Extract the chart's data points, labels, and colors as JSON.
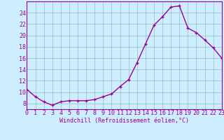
{
  "x": [
    0,
    1,
    2,
    3,
    4,
    5,
    6,
    7,
    8,
    9,
    10,
    11,
    12,
    13,
    14,
    15,
    16,
    17,
    18,
    19,
    20,
    21,
    22,
    23
  ],
  "y": [
    10.5,
    9.2,
    8.3,
    7.7,
    8.3,
    8.5,
    8.5,
    8.5,
    8.7,
    9.2,
    9.7,
    11.0,
    12.2,
    15.2,
    18.5,
    21.8,
    23.3,
    25.0,
    25.2,
    21.3,
    20.5,
    19.2,
    17.8,
    16.0
  ],
  "line_color": "#990099",
  "marker": "+",
  "bg_color": "#cceeff",
  "grid_color": "#99bbcc",
  "xlabel": "Windchill (Refroidissement éolien,°C)",
  "xlim": [
    0,
    23
  ],
  "ylim": [
    7,
    26
  ],
  "yticks": [
    8,
    10,
    12,
    14,
    16,
    18,
    20,
    22,
    24
  ],
  "xtick_labels": [
    "0",
    "1",
    "2",
    "3",
    "4",
    "5",
    "6",
    "7",
    "8",
    "9",
    "10",
    "11",
    "12",
    "13",
    "14",
    "15",
    "16",
    "17",
    "18",
    "19",
    "20",
    "21",
    "22",
    "23"
  ],
  "label_fontsize": 6,
  "tick_fontsize": 6,
  "line_width": 1.0,
  "marker_size": 3.5,
  "marker_edge_width": 1.0
}
